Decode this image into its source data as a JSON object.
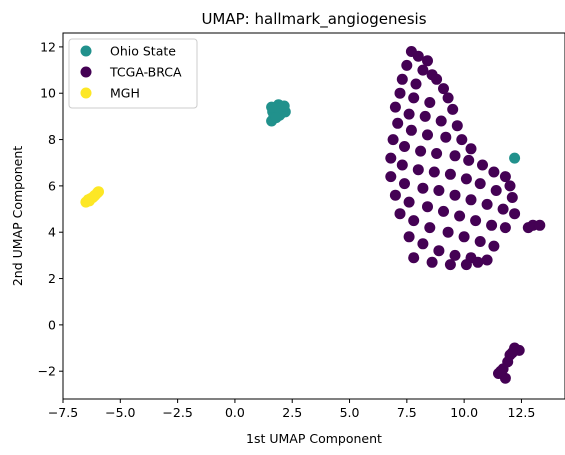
{
  "chart_data": {
    "type": "scatter",
    "title": "UMAP: hallmark_angiogenesis",
    "xlabel": "1st UMAP Component",
    "ylabel": "2nd UMAP Component",
    "xlim": [
      -7.5,
      14.4
    ],
    "ylim": [
      -3.2,
      12.6
    ],
    "xticks": [
      -7.5,
      -5.0,
      -2.5,
      0.0,
      2.5,
      5.0,
      7.5,
      10.0,
      12.5
    ],
    "xtick_labels": [
      "−7.5",
      "−5.0",
      "−2.5",
      "0.0",
      "2.5",
      "5.0",
      "7.5",
      "10.0",
      "12.5"
    ],
    "yticks": [
      -2,
      0,
      2,
      4,
      6,
      8,
      10,
      12
    ],
    "ytick_labels": [
      "−2",
      "0",
      "2",
      "4",
      "6",
      "8",
      "10",
      "12"
    ],
    "grid": false,
    "legend_position": "top-left",
    "series": [
      {
        "name": "Ohio State",
        "color": "#21918c",
        "points": [
          [
            1.6,
            8.8
          ],
          [
            1.7,
            9.0
          ],
          [
            1.65,
            9.2
          ],
          [
            1.8,
            9.4
          ],
          [
            1.9,
            9.5
          ],
          [
            2.0,
            9.4
          ],
          [
            2.1,
            9.3
          ],
          [
            2.2,
            9.2
          ],
          [
            1.75,
            9.1
          ],
          [
            1.85,
            9.25
          ],
          [
            1.7,
            9.35
          ],
          [
            2.05,
            9.15
          ],
          [
            1.95,
            9.05
          ],
          [
            1.9,
            9.3
          ],
          [
            1.6,
            9.4
          ],
          [
            2.15,
            9.45
          ],
          [
            1.8,
            8.95
          ],
          [
            12.2,
            7.2
          ]
        ]
      },
      {
        "name": "TCGA-BRCA",
        "color": "#440154",
        "points": [
          [
            7.7,
            11.8
          ],
          [
            8.0,
            11.6
          ],
          [
            8.4,
            11.4
          ],
          [
            7.5,
            11.2
          ],
          [
            8.2,
            11.0
          ],
          [
            8.6,
            10.8
          ],
          [
            7.3,
            10.6
          ],
          [
            7.9,
            10.4
          ],
          [
            8.8,
            10.6
          ],
          [
            9.1,
            10.2
          ],
          [
            7.2,
            10.0
          ],
          [
            7.8,
            9.8
          ],
          [
            8.5,
            9.6
          ],
          [
            9.3,
            9.8
          ],
          [
            9.5,
            9.3
          ],
          [
            7.0,
            9.4
          ],
          [
            7.6,
            9.1
          ],
          [
            8.3,
            9.0
          ],
          [
            9.0,
            8.8
          ],
          [
            9.7,
            8.6
          ],
          [
            7.1,
            8.7
          ],
          [
            7.7,
            8.4
          ],
          [
            8.4,
            8.2
          ],
          [
            9.2,
            8.1
          ],
          [
            9.9,
            8.0
          ],
          [
            10.3,
            7.6
          ],
          [
            6.9,
            8.0
          ],
          [
            7.4,
            7.7
          ],
          [
            8.1,
            7.5
          ],
          [
            8.8,
            7.4
          ],
          [
            9.6,
            7.3
          ],
          [
            10.2,
            7.1
          ],
          [
            10.8,
            6.9
          ],
          [
            11.3,
            6.6
          ],
          [
            11.8,
            6.4
          ],
          [
            12.0,
            6.0
          ],
          [
            6.8,
            7.2
          ],
          [
            7.3,
            6.9
          ],
          [
            8.0,
            6.7
          ],
          [
            8.7,
            6.6
          ],
          [
            9.4,
            6.5
          ],
          [
            10.1,
            6.3
          ],
          [
            10.7,
            6.1
          ],
          [
            11.4,
            5.8
          ],
          [
            12.1,
            5.5
          ],
          [
            6.8,
            6.4
          ],
          [
            7.4,
            6.1
          ],
          [
            8.2,
            5.9
          ],
          [
            8.9,
            5.8
          ],
          [
            9.6,
            5.6
          ],
          [
            10.3,
            5.4
          ],
          [
            11.0,
            5.2
          ],
          [
            11.7,
            5.0
          ],
          [
            12.2,
            4.8
          ],
          [
            7.0,
            5.6
          ],
          [
            7.6,
            5.3
          ],
          [
            8.4,
            5.1
          ],
          [
            9.1,
            4.9
          ],
          [
            9.8,
            4.7
          ],
          [
            10.5,
            4.5
          ],
          [
            11.2,
            4.3
          ],
          [
            11.8,
            4.2
          ],
          [
            7.2,
            4.8
          ],
          [
            7.8,
            4.5
          ],
          [
            8.5,
            4.2
          ],
          [
            9.3,
            4.0
          ],
          [
            10.0,
            3.8
          ],
          [
            10.7,
            3.6
          ],
          [
            11.3,
            3.4
          ],
          [
            7.6,
            3.8
          ],
          [
            8.2,
            3.5
          ],
          [
            8.9,
            3.2
          ],
          [
            9.6,
            3.0
          ],
          [
            10.3,
            2.9
          ],
          [
            11.0,
            2.8
          ],
          [
            7.8,
            2.9
          ],
          [
            8.6,
            2.7
          ],
          [
            9.4,
            2.6
          ],
          [
            10.1,
            2.6
          ],
          [
            10.6,
            2.7
          ],
          [
            13.0,
            4.3
          ],
          [
            13.3,
            4.3
          ],
          [
            12.8,
            4.2
          ],
          [
            12.2,
            -1.0
          ],
          [
            12.4,
            -1.1
          ],
          [
            12.0,
            -1.3
          ],
          [
            11.9,
            -1.6
          ],
          [
            11.7,
            -1.9
          ],
          [
            11.5,
            -2.1
          ],
          [
            11.8,
            -2.3
          ],
          [
            12.1,
            -1.2
          ],
          [
            11.6,
            -2.0
          ]
        ]
      },
      {
        "name": "MGH",
        "color": "#fde725",
        "points": [
          [
            -6.5,
            5.3
          ],
          [
            -6.4,
            5.4
          ],
          [
            -6.3,
            5.45
          ],
          [
            -6.2,
            5.5
          ],
          [
            -6.1,
            5.6
          ],
          [
            -6.0,
            5.7
          ],
          [
            -5.95,
            5.75
          ],
          [
            -6.35,
            5.35
          ],
          [
            -6.15,
            5.55
          ]
        ]
      }
    ]
  }
}
